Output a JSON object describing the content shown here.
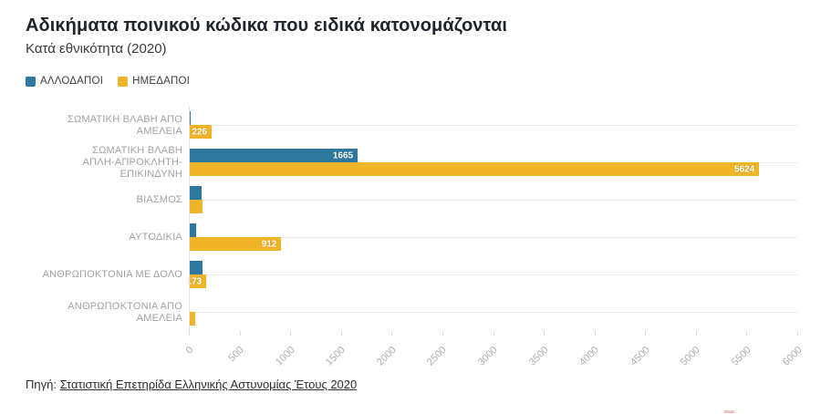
{
  "header": {
    "title": "Αδικήματα ποινικού κώδικα που ειδικά κατονομάζονται",
    "subtitle": "Κατά εθνικότητα (2020)"
  },
  "legend": [
    {
      "label": "ΑΛΛΟΔΑΠΟΙ",
      "color": "#2e78a0"
    },
    {
      "label": "ΗΜΕΔΑΠΟΙ",
      "color": "#f0b429"
    }
  ],
  "chart_data": {
    "type": "bar",
    "orientation": "horizontal",
    "grouped": true,
    "title": "Αδικήματα ποινικού κώδικα που ειδικά κατονομάζονται",
    "subtitle": "Κατά εθνικότητα (2020)",
    "categories": [
      "ΣΩΜΑΤΙΚΗ ΒΛΑΒΗ ΑΠΟ ΑΜΕΛΕΙΑ",
      [
        "ΣΩΜΑΤΙΚΗ ΒΛΑΒΗ",
        "ΑΠΛΗ-ΑΠΡΟΚΛΗΤΗ-ΕΠΙΚΙΝΔΥΝΗ"
      ],
      "ΒΙΑΣΜΟΣ",
      "ΑΥΤΟΔΙΚΙΑ",
      "ΑΝΘΡΩΠΟΚΤΟΝΙΑ ΜΕ ΔΟΛΟ",
      "ΑΝΘΡΩΠΟΚΤΟΝΙΑ ΑΠΟ ΑΜΕΛΕΙΑ"
    ],
    "series": [
      {
        "name": "ΑΛΛΟΔΑΠΟΙ",
        "color": "#2e78a0",
        "values": [
          22,
          1665,
          126,
          70,
          134,
          13
        ],
        "labels": [
          null,
          "1665",
          null,
          null,
          null,
          null
        ]
      },
      {
        "name": "ΗΜΕΔΑΠΟΙ",
        "color": "#f0b429",
        "values": [
          226,
          5624,
          137,
          912,
          173,
          63
        ],
        "labels": [
          "226",
          "5624",
          null,
          "912",
          "173",
          null
        ]
      }
    ],
    "xlim": [
      0,
      6000
    ],
    "ticks": [
      0,
      500,
      1000,
      1500,
      2000,
      2500,
      3000,
      3500,
      4000,
      4500,
      5000,
      5500,
      6000
    ],
    "legend_position": "top",
    "grid": "one horizontal gridline per category"
  },
  "footer": {
    "prefix": "Πηγή:",
    "link_text": "Στατιστική Επετηρίδα Ελληνικής Αστυνομίας Έτους 2020"
  }
}
